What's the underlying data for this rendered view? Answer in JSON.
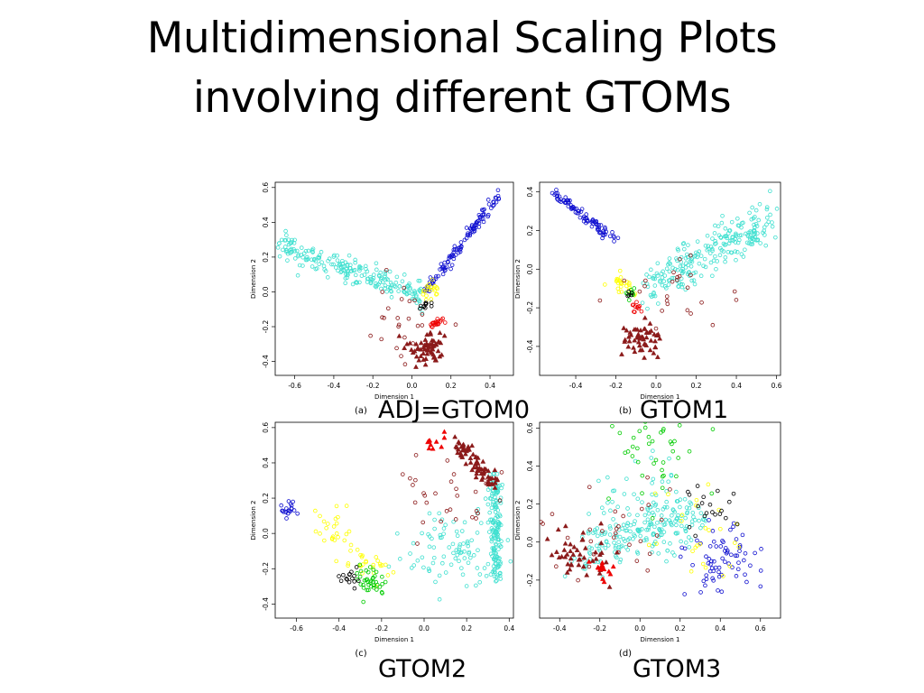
{
  "slide": {
    "title_line1": "Multidimensional Scaling Plots",
    "title_line2": "involving different GTOMs",
    "captions": [
      "ADJ=GTOM0",
      "GTOM1",
      "GTOM2",
      "GTOM3"
    ]
  },
  "colors": {
    "turquoise": "#40e0d0",
    "blue": "#1010d0",
    "brown": "#8b1a1a",
    "red": "#ee0000",
    "yellow": "#ffff00",
    "green": "#00cc00",
    "black": "#000000"
  },
  "chart_data": [
    {
      "type": "scatter",
      "panel_label": "(a)",
      "xlabel": "Dimension 1",
      "ylabel": "Dimension 2",
      "xlim": [
        -0.7,
        0.52
      ],
      "ylim": [
        -0.48,
        0.63
      ],
      "xticks": [
        "-0.6",
        "-0.4",
        "-0.2",
        "0.0",
        "0.2",
        "0.4"
      ],
      "yticks": [
        "-0.4",
        "-0.2",
        "0.0",
        "0.2",
        "0.4",
        "0.6"
      ],
      "series": [
        {
          "color": "turquoise",
          "marker": "circle",
          "shape": "band",
          "from": [
            -0.67,
            0.27
          ],
          "to": [
            0.05,
            -0.02
          ],
          "n": 220,
          "spread": 0.04
        },
        {
          "color": "blue",
          "marker": "circle",
          "shape": "band",
          "from": [
            0.07,
            0.0
          ],
          "to": [
            0.46,
            0.58
          ],
          "n": 120,
          "spread": 0.015
        },
        {
          "color": "yellow",
          "marker": "circle",
          "shape": "blob",
          "center": [
            0.1,
            0.01
          ],
          "n": 20,
          "spread": 0.025
        },
        {
          "color": "black",
          "marker": "circle",
          "shape": "blob",
          "center": [
            0.06,
            -0.08
          ],
          "n": 10,
          "spread": 0.015
        },
        {
          "color": "red",
          "marker": "circle",
          "shape": "blob",
          "center": [
            0.12,
            -0.18
          ],
          "n": 20,
          "spread": 0.02
        },
        {
          "color": "brown",
          "marker": "triangle",
          "shape": "blob",
          "center": [
            0.08,
            -0.32
          ],
          "n": 60,
          "spread": 0.05
        },
        {
          "color": "brown",
          "marker": "circle",
          "shape": "blob",
          "center": [
            -0.05,
            -0.12
          ],
          "n": 25,
          "spread": 0.12
        }
      ]
    },
    {
      "type": "scatter",
      "panel_label": "(b)",
      "xlabel": "Dimension 1",
      "ylabel": "Dimension 2",
      "xlim": [
        -0.58,
        0.62
      ],
      "ylim": [
        -0.55,
        0.45
      ],
      "xticks": [
        "-0.4",
        "-0.2",
        "0.0",
        "0.2",
        "0.4",
        "0.6"
      ],
      "yticks": [
        "-0.4",
        "-0.2",
        "0.0",
        "0.2",
        "0.4"
      ],
      "series": [
        {
          "color": "blue",
          "marker": "circle",
          "shape": "band",
          "from": [
            -0.52,
            0.4
          ],
          "to": [
            -0.2,
            0.15
          ],
          "n": 90,
          "spread": 0.015
        },
        {
          "color": "turquoise",
          "marker": "circle",
          "shape": "band",
          "from": [
            -0.05,
            -0.1
          ],
          "to": [
            0.58,
            0.27
          ],
          "n": 240,
          "spread": 0.06
        },
        {
          "color": "yellow",
          "marker": "circle",
          "shape": "blob",
          "center": [
            -0.16,
            -0.08
          ],
          "n": 25,
          "spread": 0.03
        },
        {
          "color": "green",
          "marker": "circle",
          "shape": "blob",
          "center": [
            -0.12,
            -0.13
          ],
          "n": 8,
          "spread": 0.015
        },
        {
          "color": "black",
          "marker": "circle",
          "shape": "blob",
          "center": [
            -0.12,
            -0.13
          ],
          "n": 5,
          "spread": 0.01
        },
        {
          "color": "red",
          "marker": "circle",
          "shape": "blob",
          "center": [
            -0.1,
            -0.2
          ],
          "n": 12,
          "spread": 0.015
        },
        {
          "color": "brown",
          "marker": "triangle",
          "shape": "blob",
          "center": [
            -0.07,
            -0.38
          ],
          "n": 55,
          "spread": 0.05
        },
        {
          "color": "brown",
          "marker": "circle",
          "shape": "blob",
          "center": [
            0.1,
            -0.15
          ],
          "n": 25,
          "spread": 0.12
        }
      ]
    },
    {
      "type": "scatter",
      "panel_label": "(c)",
      "xlabel": "Dimension 1",
      "ylabel": "Dimension 2",
      "xlim": [
        -0.7,
        0.42
      ],
      "ylim": [
        -0.48,
        0.63
      ],
      "xticks": [
        "-0.6",
        "-0.4",
        "-0.2",
        "0.0",
        "0.2",
        "0.4"
      ],
      "yticks": [
        "-0.4",
        "-0.2",
        "0.0",
        "0.2",
        "0.4",
        "0.6"
      ],
      "series": [
        {
          "color": "blue",
          "marker": "circle",
          "shape": "blob",
          "center": [
            -0.63,
            0.14
          ],
          "n": 20,
          "spread": 0.03
        },
        {
          "color": "turquoise",
          "marker": "circle",
          "shape": "band",
          "from": [
            0.33,
            0.35
          ],
          "to": [
            0.34,
            -0.25
          ],
          "n": 160,
          "spread": 0.03
        },
        {
          "color": "turquoise",
          "marker": "circle",
          "shape": "blob",
          "center": [
            0.15,
            -0.1
          ],
          "n": 90,
          "spread": 0.12
        },
        {
          "color": "brown",
          "marker": "triangle",
          "shape": "band",
          "from": [
            0.15,
            0.52
          ],
          "to": [
            0.33,
            0.28
          ],
          "n": 70,
          "spread": 0.03
        },
        {
          "color": "red",
          "marker": "triangle",
          "shape": "blob",
          "center": [
            0.04,
            0.53
          ],
          "n": 10,
          "spread": 0.03
        },
        {
          "color": "brown",
          "marker": "circle",
          "shape": "blob",
          "center": [
            0.12,
            0.2
          ],
          "n": 30,
          "spread": 0.12
        },
        {
          "color": "yellow",
          "marker": "circle",
          "shape": "band",
          "from": [
            -0.5,
            0.05
          ],
          "to": [
            -0.2,
            -0.22
          ],
          "n": 50,
          "spread": 0.06
        },
        {
          "color": "green",
          "marker": "circle",
          "shape": "blob",
          "center": [
            -0.25,
            -0.28
          ],
          "n": 40,
          "spread": 0.04
        },
        {
          "color": "black",
          "marker": "circle",
          "shape": "blob",
          "center": [
            -0.36,
            -0.25
          ],
          "n": 15,
          "spread": 0.03
        }
      ]
    },
    {
      "type": "scatter",
      "panel_label": "(d)",
      "xlabel": "Dimension 1",
      "ylabel": "Dimension 2",
      "xlim": [
        -0.5,
        0.7
      ],
      "ylim": [
        -0.4,
        0.63
      ],
      "xticks": [
        "-0.4",
        "-0.2",
        "0.0",
        "0.2",
        "0.4",
        "0.6"
      ],
      "yticks": [
        "-0.2",
        "0.0",
        "0.2",
        "0.4",
        "0.6"
      ],
      "series": [
        {
          "color": "turquoise",
          "marker": "circle",
          "shape": "band",
          "from": [
            -0.3,
            -0.05
          ],
          "to": [
            0.3,
            0.12
          ],
          "n": 200,
          "spread": 0.07
        },
        {
          "color": "turquoise",
          "marker": "circle",
          "shape": "blob",
          "center": [
            0.0,
            0.25
          ],
          "n": 40,
          "spread": 0.12
        },
        {
          "color": "brown",
          "marker": "triangle",
          "shape": "blob",
          "center": [
            -0.3,
            -0.08
          ],
          "n": 45,
          "spread": 0.08
        },
        {
          "color": "red",
          "marker": "triangle",
          "shape": "blob",
          "center": [
            -0.18,
            -0.15
          ],
          "n": 15,
          "spread": 0.03
        },
        {
          "color": "blue",
          "marker": "circle",
          "shape": "blob",
          "center": [
            0.42,
            -0.1
          ],
          "n": 70,
          "spread": 0.09
        },
        {
          "color": "green",
          "marker": "circle",
          "shape": "blob",
          "center": [
            0.08,
            0.45
          ],
          "n": 40,
          "spread": 0.12
        },
        {
          "color": "yellow",
          "marker": "circle",
          "shape": "blob",
          "center": [
            0.25,
            0.05
          ],
          "n": 25,
          "spread": 0.12
        },
        {
          "color": "black",
          "marker": "circle",
          "shape": "blob",
          "center": [
            0.33,
            0.18
          ],
          "n": 20,
          "spread": 0.07
        },
        {
          "color": "brown",
          "marker": "circle",
          "shape": "blob",
          "center": [
            -0.15,
            0.05
          ],
          "n": 30,
          "spread": 0.15
        }
      ]
    }
  ]
}
